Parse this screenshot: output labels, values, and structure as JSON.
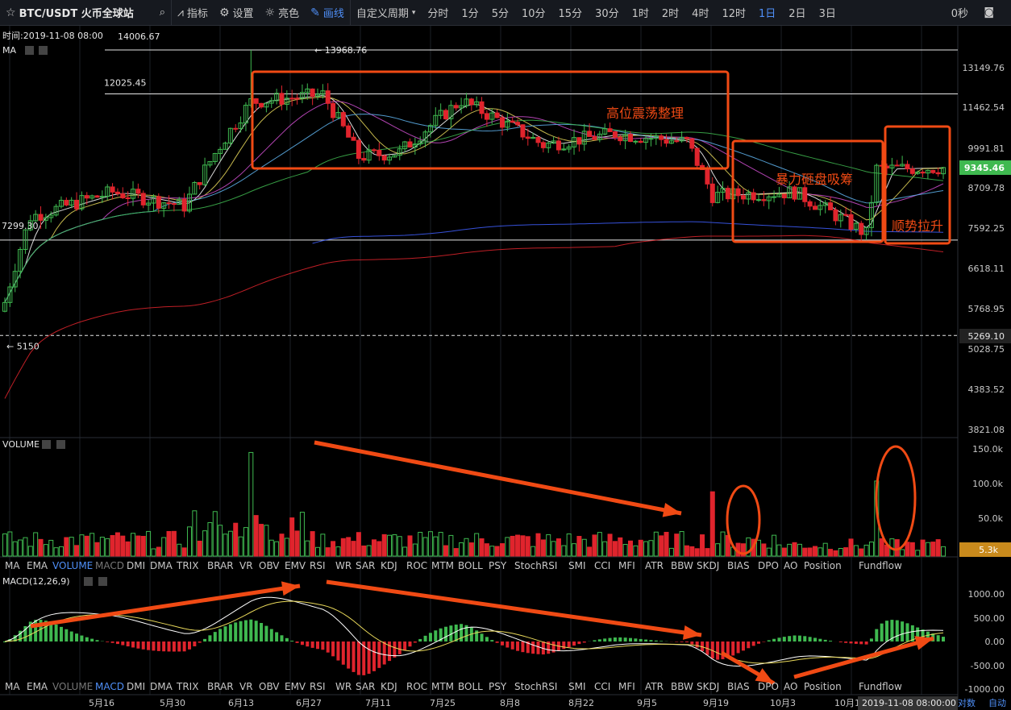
{
  "toolbar": {
    "symbol": "BTC/USDT 火币全球站",
    "items": [
      {
        "label": "指标",
        "icon": "indicator-icon"
      },
      {
        "label": "设置",
        "icon": "gear-icon"
      },
      {
        "label": "亮色",
        "icon": "sun-icon"
      },
      {
        "label": "画线",
        "icon": "pen-icon",
        "active": true
      }
    ],
    "custom_period": "自定义周期",
    "periods": [
      "分时",
      "1分",
      "5分",
      "10分",
      "15分",
      "30分",
      "1时",
      "2时",
      "4时",
      "12时",
      "1日",
      "2日",
      "3日"
    ],
    "active_period": "1日",
    "countdown": "0秒"
  },
  "main": {
    "time_label": "时间:2019-11-08 08:00",
    "ma_label": "MA",
    "price_axis": [
      "13149.76",
      "11462.54",
      "9991.81",
      "8709.78",
      "7592.25",
      "6618.11",
      "5768.95",
      "5028.75",
      "4383.52",
      "3821.08"
    ],
    "current_price": "9345.46",
    "marked_price": "5269.10",
    "h_lines": [
      {
        "label": "14006.67",
        "value": 14006.67
      },
      {
        "label": "13968.76",
        "value": 13968.76
      },
      {
        "label": "12025.45",
        "value": 12025.45
      },
      {
        "label": "7299.30",
        "value": 7299.3
      },
      {
        "label": "5150",
        "value": 5150
      }
    ],
    "annotations": [
      {
        "text": "高位震荡整理"
      },
      {
        "text": "暴力砸盘吸筹"
      },
      {
        "text": "顺势拉升"
      }
    ]
  },
  "volume": {
    "label": "VOLUME",
    "axis": [
      "150.0k",
      "100.0k",
      "50.0k"
    ],
    "current": "5.3k"
  },
  "macd": {
    "label": "MACD(12,26,9)",
    "axis": [
      "1000.00",
      "500.00",
      "0.00",
      "-500.00",
      "-1000.00"
    ]
  },
  "indicator_tabs": [
    "MA",
    "EMA",
    "VOLUME",
    "MACD",
    "DMI",
    "DMA",
    "TRIX",
    "BRAR",
    "VR",
    "OBV",
    "EMV",
    "RSI",
    "WR",
    "SAR",
    "KDJ",
    "ROC",
    "MTM",
    "BOLL",
    "PSY",
    "StochRSI",
    "SMI",
    "CCI",
    "MFI",
    "ATR",
    "BBW",
    "SKDJ",
    "BIAS",
    "DPO",
    "AO",
    "Position",
    "Fundflow"
  ],
  "date_axis": [
    "5月16",
    "5月30",
    "6月13",
    "6月27",
    "7月11",
    "7月25",
    "8月8",
    "8月22",
    "9月5",
    "9月19",
    "10月3",
    "10月1"
  ],
  "crosshair_time": "2019-11-08 08:00:00",
  "footer": {
    "log_label": "对数",
    "auto_label": "自动"
  },
  "colors": {
    "up": "#3fb950",
    "down": "#e0242d",
    "accent": "#4f8ff7",
    "annotation": "#f04a14"
  },
  "chart_data": {
    "type": "candlestick",
    "title": "BTC/USDT 火币全球站",
    "interval": "1日",
    "price_range": [
      3821.08,
      14006.67
    ],
    "price_scale": "log",
    "x_start": "2019-05-09",
    "x_end": "2019-11-08",
    "ohlc_key_points": [
      {
        "date": "2019-05-09",
        "close": 5900
      },
      {
        "date": "2019-05-14",
        "close": 7900
      },
      {
        "date": "2019-05-30",
        "close": 8600
      },
      {
        "date": "2019-06-13",
        "close": 8200
      },
      {
        "date": "2019-06-26",
        "high": 13968.76,
        "close": 11700
      },
      {
        "date": "2019-07-10",
        "close": 12000
      },
      {
        "date": "2019-07-17",
        "close": 9700
      },
      {
        "date": "2019-07-25",
        "close": 9850
      },
      {
        "date": "2019-08-06",
        "close": 11750
      },
      {
        "date": "2019-08-22",
        "close": 10100
      },
      {
        "date": "2019-09-05",
        "close": 10500
      },
      {
        "date": "2019-09-19",
        "close": 10200
      },
      {
        "date": "2019-09-24",
        "close": 8500
      },
      {
        "date": "2019-10-10",
        "close": 8600
      },
      {
        "date": "2019-10-24",
        "low": 7299.3,
        "close": 7450
      },
      {
        "date": "2019-10-26",
        "close": 9300
      },
      {
        "date": "2019-11-08",
        "close": 9345.46
      }
    ],
    "volume_range": [
      0,
      150000
    ],
    "volume_peak": 150000,
    "macd_range": [
      -1000,
      1000
    ],
    "series": [
      {
        "name": "MA"
      },
      {
        "name": "VOLUME"
      },
      {
        "name": "MACD(12,26,9)"
      }
    ]
  }
}
